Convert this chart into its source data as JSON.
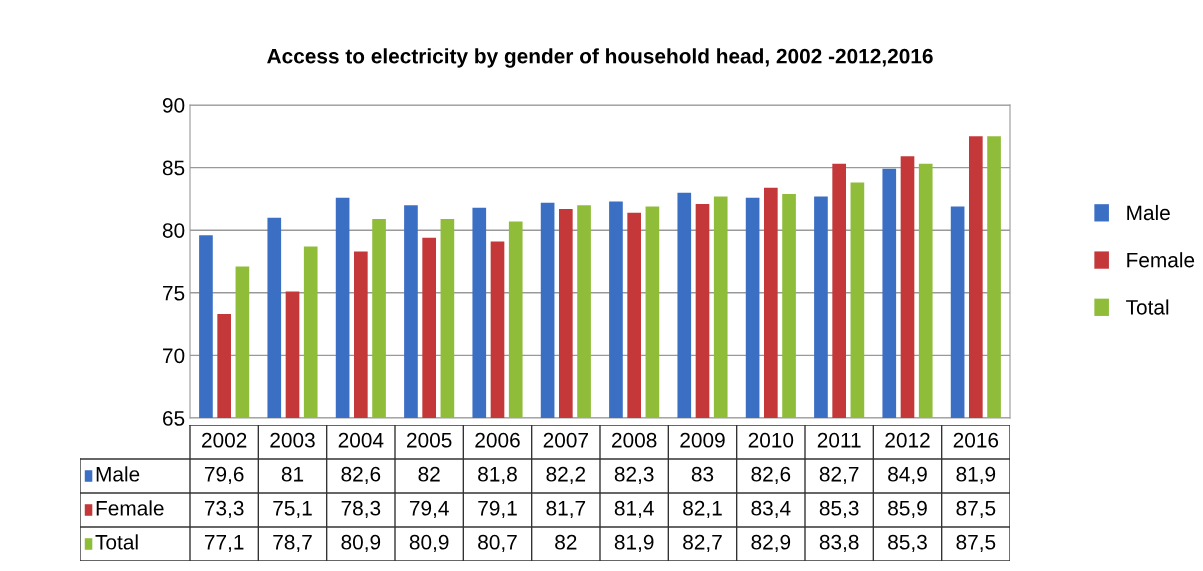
{
  "chart_data": {
    "type": "bar",
    "title": "Access to electricity by gender of household head, 2002 -2012,2016",
    "categories": [
      "2002",
      "2003",
      "2004",
      "2005",
      "2006",
      "2007",
      "2008",
      "2009",
      "2010",
      "2011",
      "2012",
      "2016"
    ],
    "series": [
      {
        "name": "Male",
        "color": "#3b6fc4",
        "values": [
          79.6,
          81,
          82.6,
          82,
          81.8,
          82.2,
          82.3,
          83,
          82.6,
          82.7,
          84.9,
          81.9
        ],
        "value_labels": [
          "79,6",
          "81",
          "82,6",
          "82",
          "81,8",
          "82,2",
          "82,3",
          "83",
          "82,6",
          "82,7",
          "84,9",
          "81,9"
        ]
      },
      {
        "name": "Female",
        "color": "#c4383a",
        "values": [
          73.3,
          75.1,
          78.3,
          79.4,
          79.1,
          81.7,
          81.4,
          82.1,
          83.4,
          85.3,
          85.9,
          87.5
        ],
        "value_labels": [
          "73,3",
          "75,1",
          "78,3",
          "79,4",
          "79,1",
          "81,7",
          "81,4",
          "82,1",
          "83,4",
          "85,3",
          "85,9",
          "87,5"
        ]
      },
      {
        "name": "Total",
        "color": "#8fbd3a",
        "values": [
          77.1,
          78.7,
          80.9,
          80.9,
          80.7,
          82,
          81.9,
          82.7,
          82.9,
          83.8,
          85.3,
          87.5
        ],
        "value_labels": [
          "77,1",
          "78,7",
          "80,9",
          "80,9",
          "80,7",
          "82",
          "81,9",
          "82,7",
          "82,9",
          "83,8",
          "85,3",
          "87,5"
        ]
      }
    ],
    "ylim": [
      65,
      90
    ],
    "yticks": [
      65,
      70,
      75,
      80,
      85,
      90
    ],
    "grid": "y",
    "legend": "right"
  }
}
